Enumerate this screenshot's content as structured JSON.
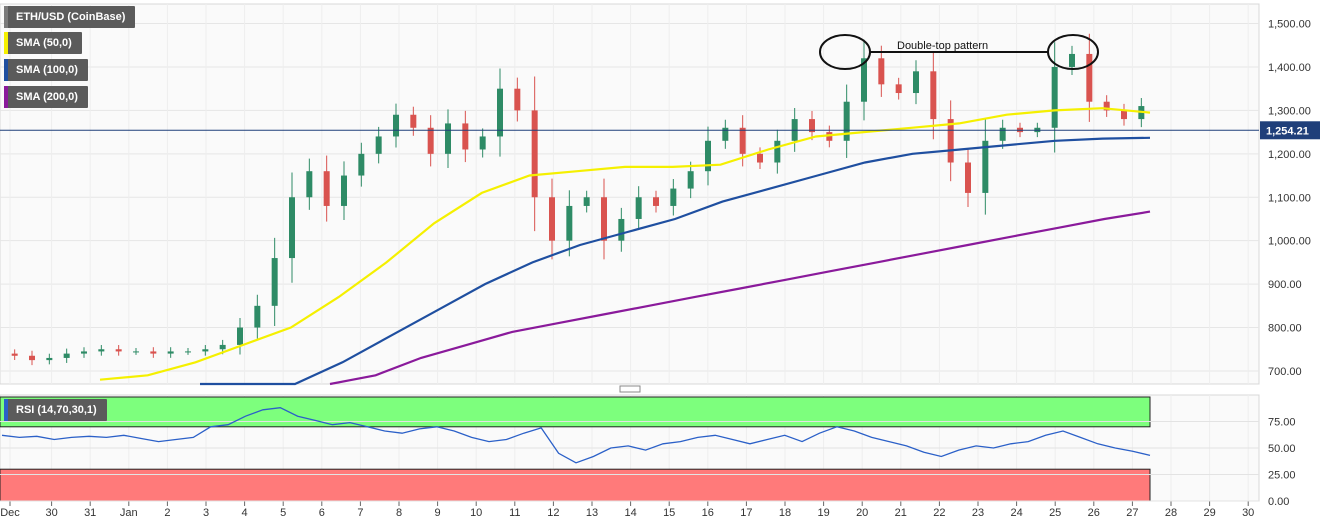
{
  "symbol_label": "ETH/USD (CoinBase)",
  "indicators": [
    {
      "label": "SMA (50,0)",
      "color": "#f5f000"
    },
    {
      "label": "SMA (100,0)",
      "color": "#1f4fa0"
    },
    {
      "label": "SMA (200,0)",
      "color": "#8a1a9b"
    }
  ],
  "rsi_label": "RSI (14,70,30,1)",
  "annotation": "Double-top pattern",
  "colors": {
    "up": "#2e8b66",
    "down": "#d9534f",
    "sma50": "#f5f000",
    "sma100": "#1f4fa0",
    "sma200": "#8a1a9b",
    "rsi": "#2b60c8",
    "overbought": "#7dff7d",
    "oversold": "#ff7a7a",
    "price_line": "#1f3f7a"
  },
  "chart_data": [
    {
      "type": "candlestick",
      "title": "ETH/USD (CoinBase)",
      "y_ticks": [
        "1,500.00",
        "1,400.00",
        "1,300.00",
        "1,200.00",
        "1,100.00",
        "1,000.00",
        "900.00",
        "800.00",
        "700.00"
      ],
      "ylim": [
        670,
        1545
      ],
      "current_price": 1254.21,
      "current_price_label": "1,254.21",
      "x_ticks": [
        "Dec",
        "30",
        "31",
        "Jan",
        "2",
        "3",
        "4",
        "5",
        "6",
        "7",
        "8",
        "9",
        "10",
        "11",
        "12",
        "13",
        "14",
        "15",
        "16",
        "17",
        "18",
        "19",
        "20",
        "21",
        "22",
        "23",
        "24",
        "25",
        "26",
        "27",
        "28",
        "29",
        "30"
      ],
      "candles_close_approx": [
        735,
        725,
        730,
        740,
        745,
        750,
        745,
        745,
        740,
        745,
        745,
        750,
        760,
        800,
        850,
        960,
        1100,
        1160,
        1080,
        1150,
        1200,
        1240,
        1290,
        1260,
        1200,
        1270,
        1210,
        1240,
        1350,
        1300,
        1100,
        1000,
        1080,
        1100,
        1000,
        1050,
        1100,
        1080,
        1120,
        1160,
        1230,
        1260,
        1200,
        1180,
        1230,
        1280,
        1250,
        1230,
        1320,
        1420,
        1360,
        1340,
        1390,
        1280,
        1180,
        1110,
        1230,
        1260,
        1250,
        1260,
        1400,
        1430,
        1320,
        1300,
        1280,
        1310
      ],
      "series": [
        {
          "name": "SMA (50,0)",
          "values_approx": [
            680,
            690,
            720,
            760,
            800,
            870,
            950,
            1040,
            1110,
            1150,
            1160,
            1170,
            1170,
            1175,
            1210,
            1240,
            1250,
            1260,
            1270,
            1290,
            1300,
            1305,
            1295
          ]
        },
        {
          "name": "SMA (100,0)",
          "values_approx": [
            620,
            640,
            670,
            720,
            780,
            840,
            900,
            950,
            990,
            1020,
            1050,
            1090,
            1120,
            1150,
            1180,
            1200,
            1210,
            1220,
            1230,
            1235,
            1237
          ]
        },
        {
          "name": "SMA (200,0)",
          "values_approx": [
            650,
            690,
            730,
            760,
            790,
            810,
            830,
            850,
            870,
            890,
            910,
            930,
            950,
            970,
            990,
            1010,
            1030,
            1050,
            1067
          ]
        }
      ]
    },
    {
      "type": "line",
      "title": "RSI (14,70,30,1)",
      "y_ticks": [
        "75.00",
        "50.00",
        "25.00",
        "0.00"
      ],
      "ylim": [
        0,
        100
      ],
      "overbought": 70,
      "oversold": 30,
      "values_approx": [
        62,
        60,
        61,
        58,
        60,
        61,
        60,
        62,
        59,
        56,
        58,
        60,
        70,
        72,
        80,
        86,
        88,
        80,
        76,
        72,
        74,
        70,
        66,
        64,
        68,
        70,
        66,
        60,
        56,
        58,
        64,
        69,
        45,
        36,
        42,
        50,
        52,
        48,
        54,
        56,
        60,
        62,
        58,
        54,
        58,
        62,
        56,
        64,
        70,
        66,
        60,
        56,
        52,
        46,
        42,
        48,
        52,
        50,
        54,
        56,
        62,
        66,
        60,
        54,
        50,
        47,
        43
      ]
    }
  ]
}
